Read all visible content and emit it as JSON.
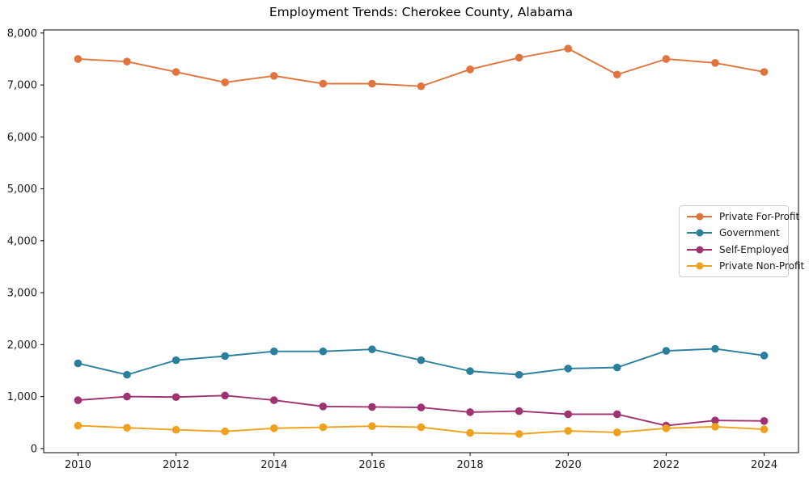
{
  "figure": {
    "title": "Employment Trends: Cherokee County, Alabama"
  },
  "chart_data": {
    "type": "line",
    "title": "Employment Trends: Cherokee County, Alabama",
    "xlabel": "",
    "ylabel": "",
    "grid": false,
    "legend_position": "center-right",
    "x": [
      2010,
      2011,
      2012,
      2013,
      2014,
      2015,
      2016,
      2017,
      2018,
      2019,
      2020,
      2021,
      2022,
      2023,
      2024
    ],
    "xticks": [
      2010,
      2012,
      2014,
      2016,
      2018,
      2020,
      2022,
      2024
    ],
    "yticks": [
      0,
      1000,
      2000,
      3000,
      4000,
      5000,
      6000,
      7000,
      8000
    ],
    "xlim": [
      2009.3,
      2024.7
    ],
    "ylim": [
      -80,
      8060
    ],
    "series": [
      {
        "name": "Private For-Profit",
        "color": "#e1743c",
        "values": [
          7500,
          7450,
          7250,
          7050,
          7175,
          7025,
          7025,
          6975,
          7300,
          7525,
          7700,
          7200,
          7500,
          7425,
          7250
        ]
      },
      {
        "name": "Government",
        "color": "#2a7f9e",
        "values": [
          1640,
          1420,
          1700,
          1780,
          1870,
          1870,
          1910,
          1700,
          1490,
          1420,
          1540,
          1560,
          1880,
          1920,
          1790
        ]
      },
      {
        "name": "Self-Employed",
        "color": "#a03272",
        "values": [
          930,
          1000,
          990,
          1020,
          930,
          810,
          800,
          790,
          700,
          720,
          660,
          660,
          440,
          540,
          530
        ]
      },
      {
        "name": "Private Non-Profit",
        "color": "#f0a11b",
        "values": [
          440,
          400,
          360,
          330,
          390,
          410,
          430,
          410,
          300,
          280,
          340,
          310,
          390,
          420,
          370
        ]
      }
    ],
    "axis_color": "#000000",
    "tick_label_color": "#1a1a1a"
  }
}
